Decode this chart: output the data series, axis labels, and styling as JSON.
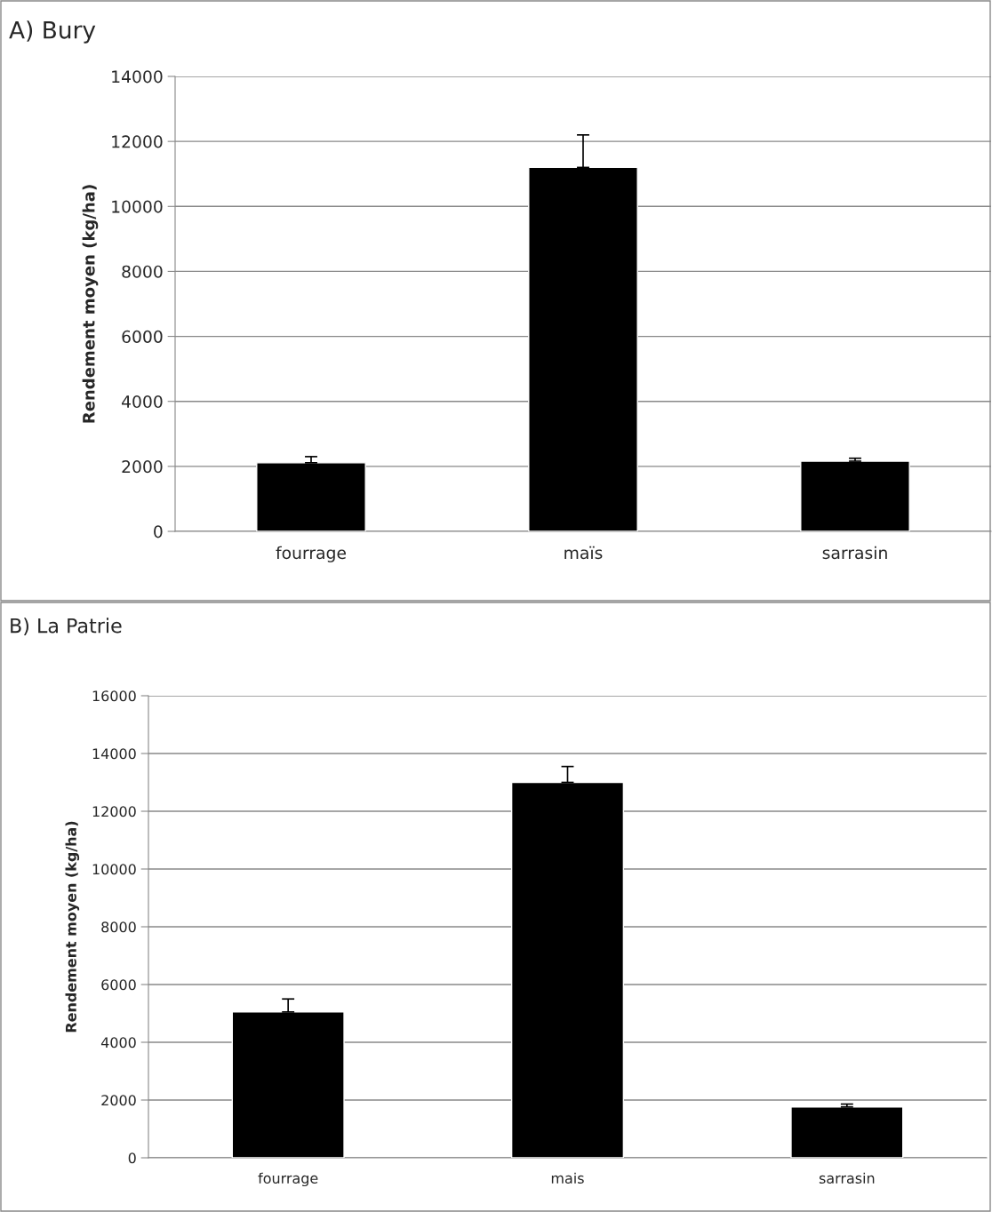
{
  "chart_data": [
    {
      "type": "bar",
      "title": "A) Bury",
      "ylabel": "Rendement moyen (kg/ha)",
      "categories": [
        "fourrage",
        "maïs",
        "sarrasin"
      ],
      "values": [
        2110,
        11200,
        2160
      ],
      "color": "#000000",
      "errors": [
        [
          2110,
          2300
        ],
        [
          11200,
          12200
        ],
        [
          2160,
          2250
        ]
      ],
      "ylim": [
        0,
        14000
      ],
      "yticks": [
        0,
        2000,
        4000,
        6000,
        8000,
        10000,
        12000,
        14000
      ],
      "grid": "y",
      "legend": false
    },
    {
      "type": "bar",
      "title": "B) La Patrie",
      "ylabel": "Rendement moyen (kg/ha)",
      "categories": [
        "fourrage",
        "mais",
        "sarrasin"
      ],
      "values": [
        5050,
        13000,
        1760
      ],
      "color": "#000000",
      "errors": [
        [
          5050,
          5500
        ],
        [
          13000,
          13550
        ],
        [
          1760,
          1860
        ]
      ],
      "ylim": [
        0,
        16000
      ],
      "yticks": [
        0,
        2000,
        4000,
        6000,
        8000,
        10000,
        12000,
        14000,
        16000
      ],
      "grid": "y",
      "legend": false
    }
  ]
}
